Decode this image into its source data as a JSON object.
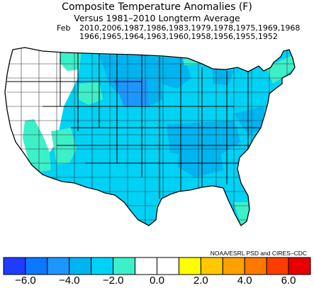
{
  "title": "Composite Temperature Anomalies (F)",
  "subtitle": "Versus 1981–2010 Longterm Average",
  "month": "Feb",
  "years_line1": "2010,2006,1987,1986,1983,1979,1978,1975,1969,1968",
  "years_line2": "1966,1965,1964,1963,1960,1958,1956,1955,1952",
  "credit": "NOAA/ESRL PSD and CIRES–CDC",
  "colorbar": {
    "colors": [
      "#1e3cff",
      "#0a78ff",
      "#1e96ff",
      "#00b4f0",
      "#00d2f5",
      "#3cf0c8",
      "#ffffff",
      "#ffffff",
      "#ffff00",
      "#ffc800",
      "#ffa000",
      "#ff7800",
      "#ff3c00",
      "#e60000"
    ],
    "ticks": [
      "−6.0",
      "−4.0",
      "−2.0",
      "0.0",
      "2.0",
      "4.0",
      "6.0"
    ]
  },
  "map_legend_colors": {
    "strong_cold": "#1e96ff",
    "moderate_cold": "#00b4f0",
    "mild_cold": "#00d2f5",
    "slight_cold": "#3cf0c8",
    "near_normal": "#ffffff"
  }
}
